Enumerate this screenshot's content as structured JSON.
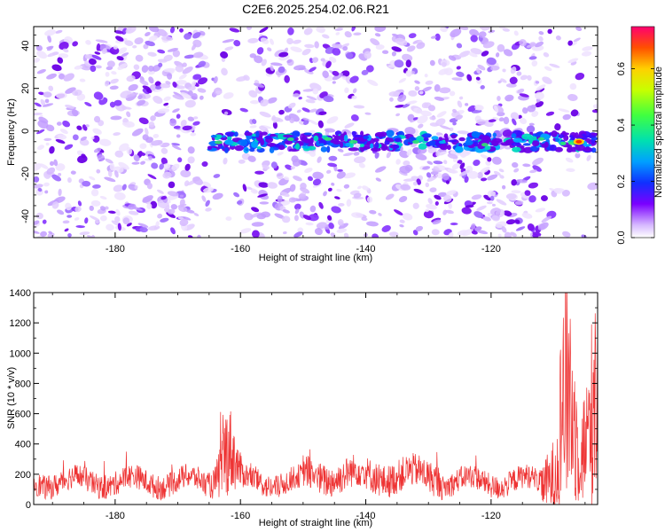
{
  "title": "C2E6.2025.254.02.06.R21",
  "chart_data": [
    {
      "type": "heatmap",
      "xlabel": "Height of straight line (km)",
      "ylabel": "Frequency (Hz)",
      "xlim": [
        -193,
        -103
      ],
      "ylim": [
        -50,
        49
      ],
      "xticks": [
        -180,
        -160,
        -140,
        -120
      ],
      "yticks": [
        -40,
        -20,
        0,
        20,
        40
      ],
      "colorbar": {
        "label": "Normalized spectral amplitude",
        "range": [
          0,
          0.75
        ],
        "ticks": [
          0.0,
          0.2,
          0.4,
          0.6
        ]
      },
      "band": {
        "frequency_center": -5,
        "x_start": -165,
        "x_end": -103,
        "peak_x": -106,
        "peak_value": 0.75
      }
    },
    {
      "type": "line",
      "xlabel": "Height of straight line (km)",
      "ylabel": "SNR (10 * v/v)",
      "xlim": [
        -193,
        -103
      ],
      "ylim": [
        0,
        1400
      ],
      "xticks": [
        -180,
        -160,
        -140,
        -120
      ],
      "yticks": [
        0,
        200,
        400,
        600,
        800,
        1000,
        1200,
        1400
      ],
      "color": "#ee3333",
      "baseline": 150,
      "features": [
        {
          "x": -162,
          "value": 600
        },
        {
          "x": -108,
          "value": 1400
        },
        {
          "x": -103,
          "value": 1050
        }
      ]
    }
  ]
}
